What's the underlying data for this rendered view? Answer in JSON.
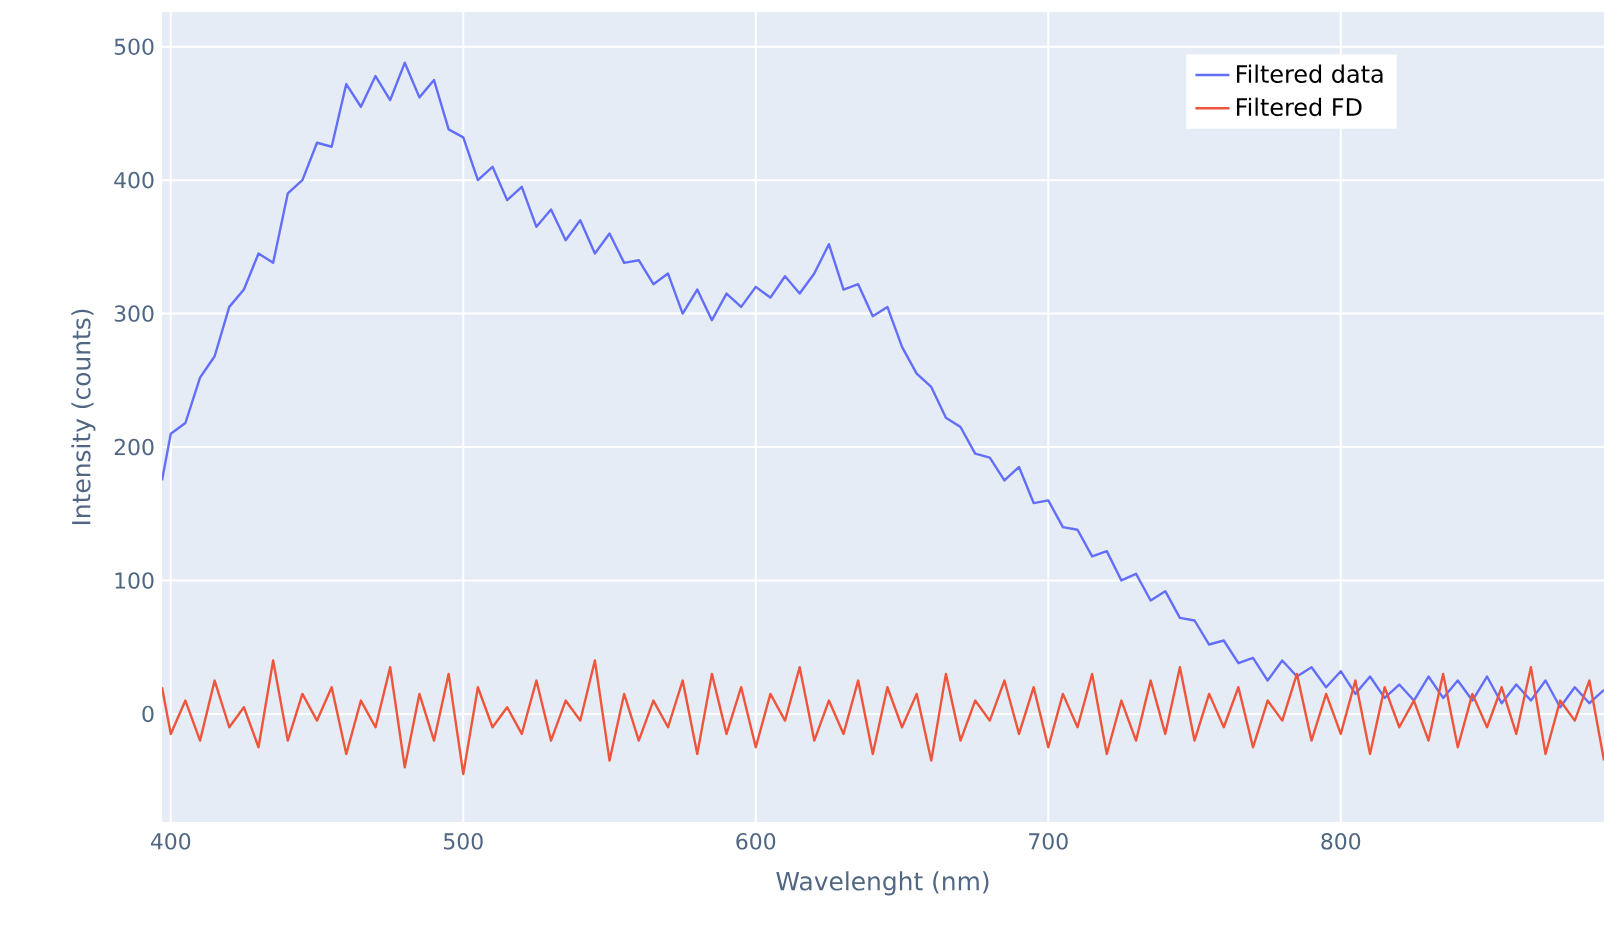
{
  "chart_data": {
    "type": "line",
    "xlabel": "Wavelenght (nm)",
    "ylabel": "Intensity (counts)",
    "x": [
      397,
      400,
      405,
      410,
      415,
      420,
      425,
      430,
      435,
      440,
      445,
      450,
      455,
      460,
      465,
      470,
      475,
      480,
      485,
      490,
      495,
      500,
      505,
      510,
      515,
      520,
      525,
      530,
      535,
      540,
      545,
      550,
      555,
      560,
      565,
      570,
      575,
      580,
      585,
      590,
      595,
      600,
      605,
      610,
      615,
      620,
      625,
      630,
      635,
      640,
      645,
      650,
      655,
      660,
      665,
      670,
      675,
      680,
      685,
      690,
      695,
      700,
      705,
      710,
      715,
      720,
      725,
      730,
      735,
      740,
      745,
      750,
      755,
      760,
      765,
      770,
      775,
      780,
      785,
      790,
      795,
      800,
      805,
      810,
      815,
      820,
      825,
      830,
      835,
      840,
      845,
      850,
      855,
      860,
      865,
      870,
      875,
      880,
      885,
      890
    ],
    "series": [
      {
        "name": "Filtered data",
        "color": "#636efa",
        "values": [
          175,
          210,
          218,
          252,
          268,
          305,
          318,
          345,
          338,
          390,
          400,
          428,
          425,
          472,
          455,
          478,
          460,
          488,
          462,
          475,
          438,
          432,
          400,
          410,
          385,
          395,
          365,
          378,
          355,
          370,
          345,
          360,
          338,
          340,
          322,
          330,
          300,
          318,
          295,
          315,
          305,
          320,
          312,
          328,
          315,
          330,
          352,
          318,
          322,
          298,
          305,
          275,
          255,
          245,
          222,
          215,
          195,
          192,
          175,
          185,
          158,
          160,
          140,
          138,
          118,
          122,
          100,
          105,
          85,
          92,
          72,
          70,
          52,
          55,
          38,
          42,
          25,
          40,
          28,
          35,
          20,
          32,
          15,
          28,
          12,
          22,
          10,
          28,
          12,
          25,
          10,
          28,
          8,
          22,
          10,
          25,
          5,
          20,
          8,
          18
        ]
      },
      {
        "name": "Filtered FD",
        "color": "#ef553b",
        "values": [
          20,
          -15,
          10,
          -20,
          25,
          -10,
          5,
          -25,
          40,
          -20,
          15,
          -5,
          20,
          -30,
          10,
          -10,
          35,
          -40,
          15,
          -20,
          30,
          -45,
          20,
          -10,
          5,
          -15,
          25,
          -20,
          10,
          -5,
          40,
          -35,
          15,
          -20,
          10,
          -10,
          25,
          -30,
          30,
          -15,
          20,
          -25,
          15,
          -5,
          35,
          -20,
          10,
          -15,
          25,
          -30,
          20,
          -10,
          15,
          -35,
          30,
          -20,
          10,
          -5,
          25,
          -15,
          20,
          -25,
          15,
          -10,
          30,
          -30,
          10,
          -20,
          25,
          -15,
          35,
          -20,
          15,
          -10,
          20,
          -25,
          10,
          -5,
          30,
          -20,
          15,
          -15,
          25,
          -30,
          20,
          -10,
          10,
          -20,
          30,
          -25,
          15,
          -10,
          20,
          -15,
          35,
          -30,
          10,
          -5,
          25,
          -35
        ]
      }
    ],
    "xlim": [
      397,
      890
    ],
    "ylim": [
      -81,
      526
    ],
    "xticks": [
      400,
      500,
      600,
      700,
      800
    ],
    "yticks": [
      0,
      100,
      200,
      300,
      400,
      500
    ],
    "grid": true,
    "legend": "top right"
  }
}
